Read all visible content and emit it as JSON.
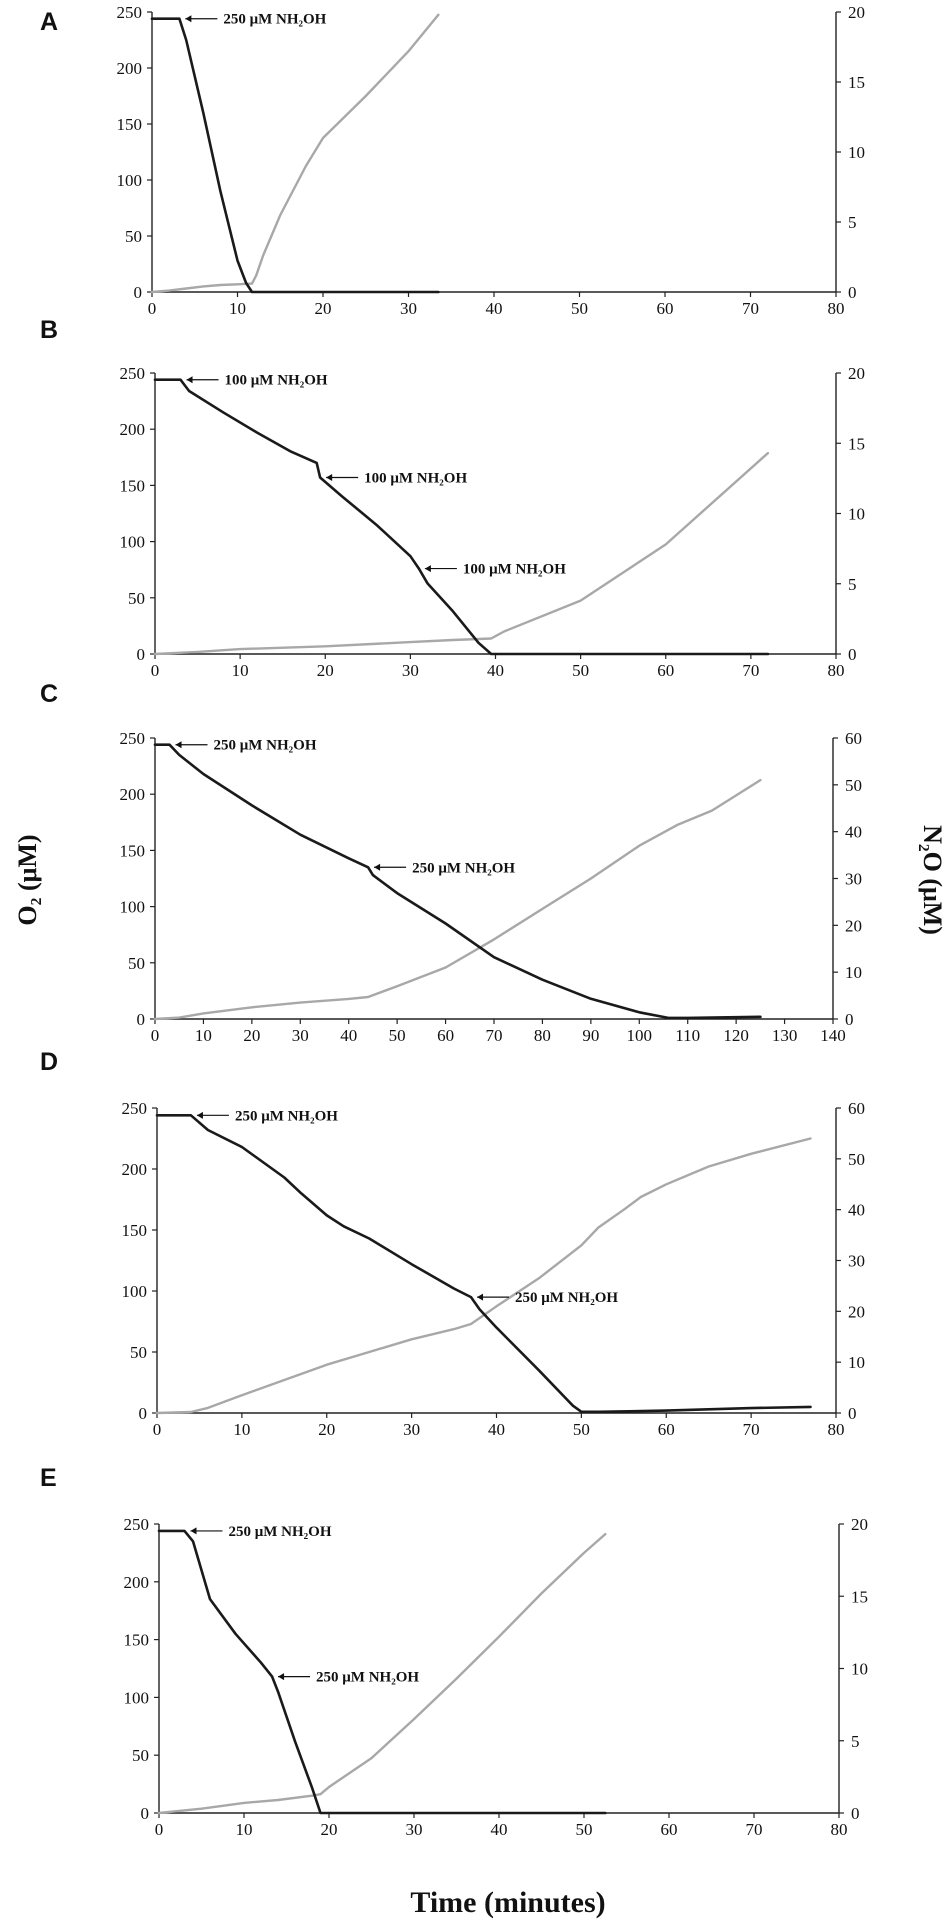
{
  "figure": {
    "left_axis_title": "O₂ (μM)",
    "right_axis_title": "N₂O (μM)",
    "x_axis_title": "Time (minutes)"
  },
  "chart_data": [
    {
      "type": "line",
      "panel": "A",
      "xlim": [
        0,
        80
      ],
      "xticks": [
        0,
        10,
        20,
        30,
        40,
        50,
        60,
        70,
        80
      ],
      "ylim_left": [
        0,
        250
      ],
      "yticks_left": [
        0,
        50,
        100,
        150,
        200,
        250
      ],
      "ylim_right": [
        0,
        20
      ],
      "yticks_right": [
        0,
        5,
        10,
        15,
        20
      ],
      "series": [
        {
          "name": "O2",
          "axis": "left",
          "color": "#1a1a1a",
          "points": [
            [
              0,
              244
            ],
            [
              3.2,
              244
            ],
            [
              4,
              225
            ],
            [
              6,
              160
            ],
            [
              8,
              90
            ],
            [
              10,
              28
            ],
            [
              11,
              8
            ],
            [
              11.7,
              0
            ],
            [
              33.5,
              0
            ]
          ]
        },
        {
          "name": "N2O",
          "axis": "right",
          "color": "#a8a8a8",
          "points": [
            [
              0,
              0
            ],
            [
              2,
              0.1
            ],
            [
              4,
              0.25
            ],
            [
              6,
              0.4
            ],
            [
              8,
              0.5
            ],
            [
              10,
              0.55
            ],
            [
              11.7,
              0.6
            ],
            [
              12.2,
              1.2
            ],
            [
              13,
              2.6
            ],
            [
              15,
              5.5
            ],
            [
              18,
              9
            ],
            [
              20,
              11
            ],
            [
              25,
              14
            ],
            [
              30,
              17.2
            ],
            [
              33.5,
              19.8
            ]
          ]
        }
      ],
      "annotations": [
        {
          "text": "250 μM NH₂OH",
          "x": 3.2,
          "y": 244
        }
      ]
    },
    {
      "type": "line",
      "panel": "B",
      "xlim": [
        0,
        80
      ],
      "xticks": [
        0,
        10,
        20,
        30,
        40,
        50,
        60,
        70,
        80
      ],
      "ylim_left": [
        0,
        250
      ],
      "yticks_left": [
        0,
        50,
        100,
        150,
        200,
        250
      ],
      "ylim_right": [
        0,
        20
      ],
      "yticks_right": [
        0,
        5,
        10,
        15,
        20
      ],
      "series": [
        {
          "name": "O2",
          "axis": "left",
          "color": "#1a1a1a",
          "points": [
            [
              0,
              244
            ],
            [
              3,
              244
            ],
            [
              4,
              234
            ],
            [
              8,
              215
            ],
            [
              12,
              197
            ],
            [
              16,
              180
            ],
            [
              19,
              170
            ],
            [
              19.4,
              157
            ],
            [
              22,
              140
            ],
            [
              26,
              115
            ],
            [
              30,
              87
            ],
            [
              31,
              76
            ],
            [
              32,
              63
            ],
            [
              35,
              38
            ],
            [
              38,
              10
            ],
            [
              39.5,
              0
            ],
            [
              72,
              0
            ]
          ]
        },
        {
          "name": "N2O",
          "axis": "right",
          "color": "#a8a8a8",
          "points": [
            [
              0,
              0
            ],
            [
              5,
              0.15
            ],
            [
              10,
              0.35
            ],
            [
              20,
              0.55
            ],
            [
              30,
              0.85
            ],
            [
              35,
              1.0
            ],
            [
              39.5,
              1.1
            ],
            [
              41,
              1.6
            ],
            [
              50,
              3.8
            ],
            [
              60,
              7.8
            ],
            [
              72,
              14.3
            ]
          ]
        }
      ],
      "annotations": [
        {
          "text": "100 μM NH₂OH",
          "x": 3,
          "y": 244
        },
        {
          "text": "100 μM NH₂OH",
          "x": 19.4,
          "y": 157
        },
        {
          "text": "100 μM NH₂OH",
          "x": 31,
          "y": 76
        }
      ]
    },
    {
      "type": "line",
      "panel": "C",
      "xlim": [
        0,
        140
      ],
      "xticks": [
        0,
        10,
        20,
        30,
        40,
        50,
        60,
        70,
        80,
        90,
        100,
        110,
        120,
        130,
        140
      ],
      "ylim_left": [
        0,
        250
      ],
      "yticks_left": [
        0,
        50,
        100,
        150,
        200,
        250
      ],
      "ylim_right": [
        0,
        60
      ],
      "yticks_right": [
        0,
        10,
        20,
        30,
        40,
        50,
        60
      ],
      "series": [
        {
          "name": "O2",
          "axis": "left",
          "color": "#1a1a1a",
          "points": [
            [
              0,
              244
            ],
            [
              3,
              244
            ],
            [
              5,
              235
            ],
            [
              10,
              218
            ],
            [
              20,
              190
            ],
            [
              30,
              164
            ],
            [
              40,
              143
            ],
            [
              44,
              135
            ],
            [
              45,
              128
            ],
            [
              50,
              112
            ],
            [
              60,
              85
            ],
            [
              70,
              55
            ],
            [
              80,
              35
            ],
            [
              90,
              18
            ],
            [
              100,
              6
            ],
            [
              106,
              1
            ],
            [
              110,
              1
            ],
            [
              125,
              2
            ]
          ]
        },
        {
          "name": "N2O",
          "axis": "right",
          "color": "#a8a8a8",
          "points": [
            [
              0,
              0
            ],
            [
              5,
              0.3
            ],
            [
              10,
              1.2
            ],
            [
              20,
              2.5
            ],
            [
              30,
              3.5
            ],
            [
              40,
              4.3
            ],
            [
              44,
              4.7
            ],
            [
              50,
              7
            ],
            [
              60,
              11
            ],
            [
              70,
              17
            ],
            [
              80,
              23.5
            ],
            [
              90,
              30
            ],
            [
              100,
              37
            ],
            [
              108,
              41.5
            ],
            [
              115,
              44.5
            ],
            [
              125,
              51
            ]
          ]
        }
      ],
      "annotations": [
        {
          "text": "250 μM NH₂OH",
          "x": 3,
          "y": 244
        },
        {
          "text": "250 μM NH₂OH",
          "x": 44,
          "y": 135
        }
      ]
    },
    {
      "type": "line",
      "panel": "D",
      "xlim": [
        0,
        80
      ],
      "xticks": [
        0,
        10,
        20,
        30,
        40,
        50,
        60,
        70,
        80
      ],
      "ylim_left": [
        0,
        250
      ],
      "yticks_left": [
        0,
        50,
        100,
        150,
        200,
        250
      ],
      "ylim_right": [
        0,
        60
      ],
      "yticks_right": [
        0,
        10,
        20,
        30,
        40,
        50,
        60
      ],
      "series": [
        {
          "name": "O2",
          "axis": "left",
          "color": "#1a1a1a",
          "points": [
            [
              0,
              244
            ],
            [
              4,
              244
            ],
            [
              6,
              232
            ],
            [
              10,
              218
            ],
            [
              15,
              193
            ],
            [
              17,
              180
            ],
            [
              20,
              162
            ],
            [
              22,
              153
            ],
            [
              25,
              143
            ],
            [
              30,
              122
            ],
            [
              35,
              102
            ],
            [
              37,
              95
            ],
            [
              38,
              85
            ],
            [
              40,
              70
            ],
            [
              45,
              35
            ],
            [
              49,
              6
            ],
            [
              50,
              1
            ],
            [
              52,
              1
            ],
            [
              60,
              2
            ],
            [
              70,
              4
            ],
            [
              77,
              5
            ]
          ]
        },
        {
          "name": "N2O",
          "axis": "right",
          "color": "#a8a8a8",
          "points": [
            [
              0,
              0
            ],
            [
              4,
              0.2
            ],
            [
              6,
              1
            ],
            [
              10,
              3.5
            ],
            [
              15,
              6.5
            ],
            [
              20,
              9.5
            ],
            [
              25,
              12
            ],
            [
              30,
              14.5
            ],
            [
              35,
              16.5
            ],
            [
              37,
              17.5
            ],
            [
              40,
              21
            ],
            [
              45,
              26.5
            ],
            [
              50,
              33
            ],
            [
              52,
              36.5
            ],
            [
              55,
              40
            ],
            [
              57,
              42.5
            ],
            [
              60,
              45
            ],
            [
              65,
              48.5
            ],
            [
              70,
              51
            ],
            [
              77,
              54
            ]
          ]
        }
      ],
      "annotations": [
        {
          "text": "250 μM NH₂OH",
          "x": 4,
          "y": 244
        },
        {
          "text": "250 μM NH₂OH",
          "x": 37,
          "y": 95
        }
      ]
    },
    {
      "type": "line",
      "panel": "E",
      "xlim": [
        0,
        80
      ],
      "xticks": [
        0,
        10,
        20,
        30,
        40,
        50,
        60,
        70,
        80
      ],
      "ylim_left": [
        0,
        250
      ],
      "yticks_left": [
        0,
        50,
        100,
        150,
        200,
        250
      ],
      "ylim_right": [
        0,
        20
      ],
      "yticks_right": [
        0,
        5,
        10,
        15,
        20
      ],
      "series": [
        {
          "name": "O2",
          "axis": "left",
          "color": "#1a1a1a",
          "points": [
            [
              0,
              244
            ],
            [
              3,
              244
            ],
            [
              4,
              235
            ],
            [
              6,
              185
            ],
            [
              9,
              155
            ],
            [
              12,
              130
            ],
            [
              13.3,
              118
            ],
            [
              14,
              105
            ],
            [
              16,
              62
            ],
            [
              18,
              22
            ],
            [
              19,
              0
            ],
            [
              52.5,
              0
            ]
          ]
        },
        {
          "name": "N2O",
          "axis": "right",
          "color": "#a8a8a8",
          "points": [
            [
              0,
              0
            ],
            [
              5,
              0.3
            ],
            [
              10,
              0.7
            ],
            [
              14,
              0.9
            ],
            [
              18,
              1.2
            ],
            [
              19,
              1.3
            ],
            [
              20,
              1.8
            ],
            [
              25,
              3.8
            ],
            [
              30,
              6.5
            ],
            [
              35,
              9.3
            ],
            [
              40,
              12.2
            ],
            [
              45,
              15.2
            ],
            [
              50,
              18
            ],
            [
              52.5,
              19.3
            ]
          ]
        }
      ],
      "annotations": [
        {
          "text": "250 μM NH₂OH",
          "x": 3,
          "y": 244
        },
        {
          "text": "250 μM NH₂OH",
          "x": 13.3,
          "y": 118
        }
      ]
    }
  ]
}
